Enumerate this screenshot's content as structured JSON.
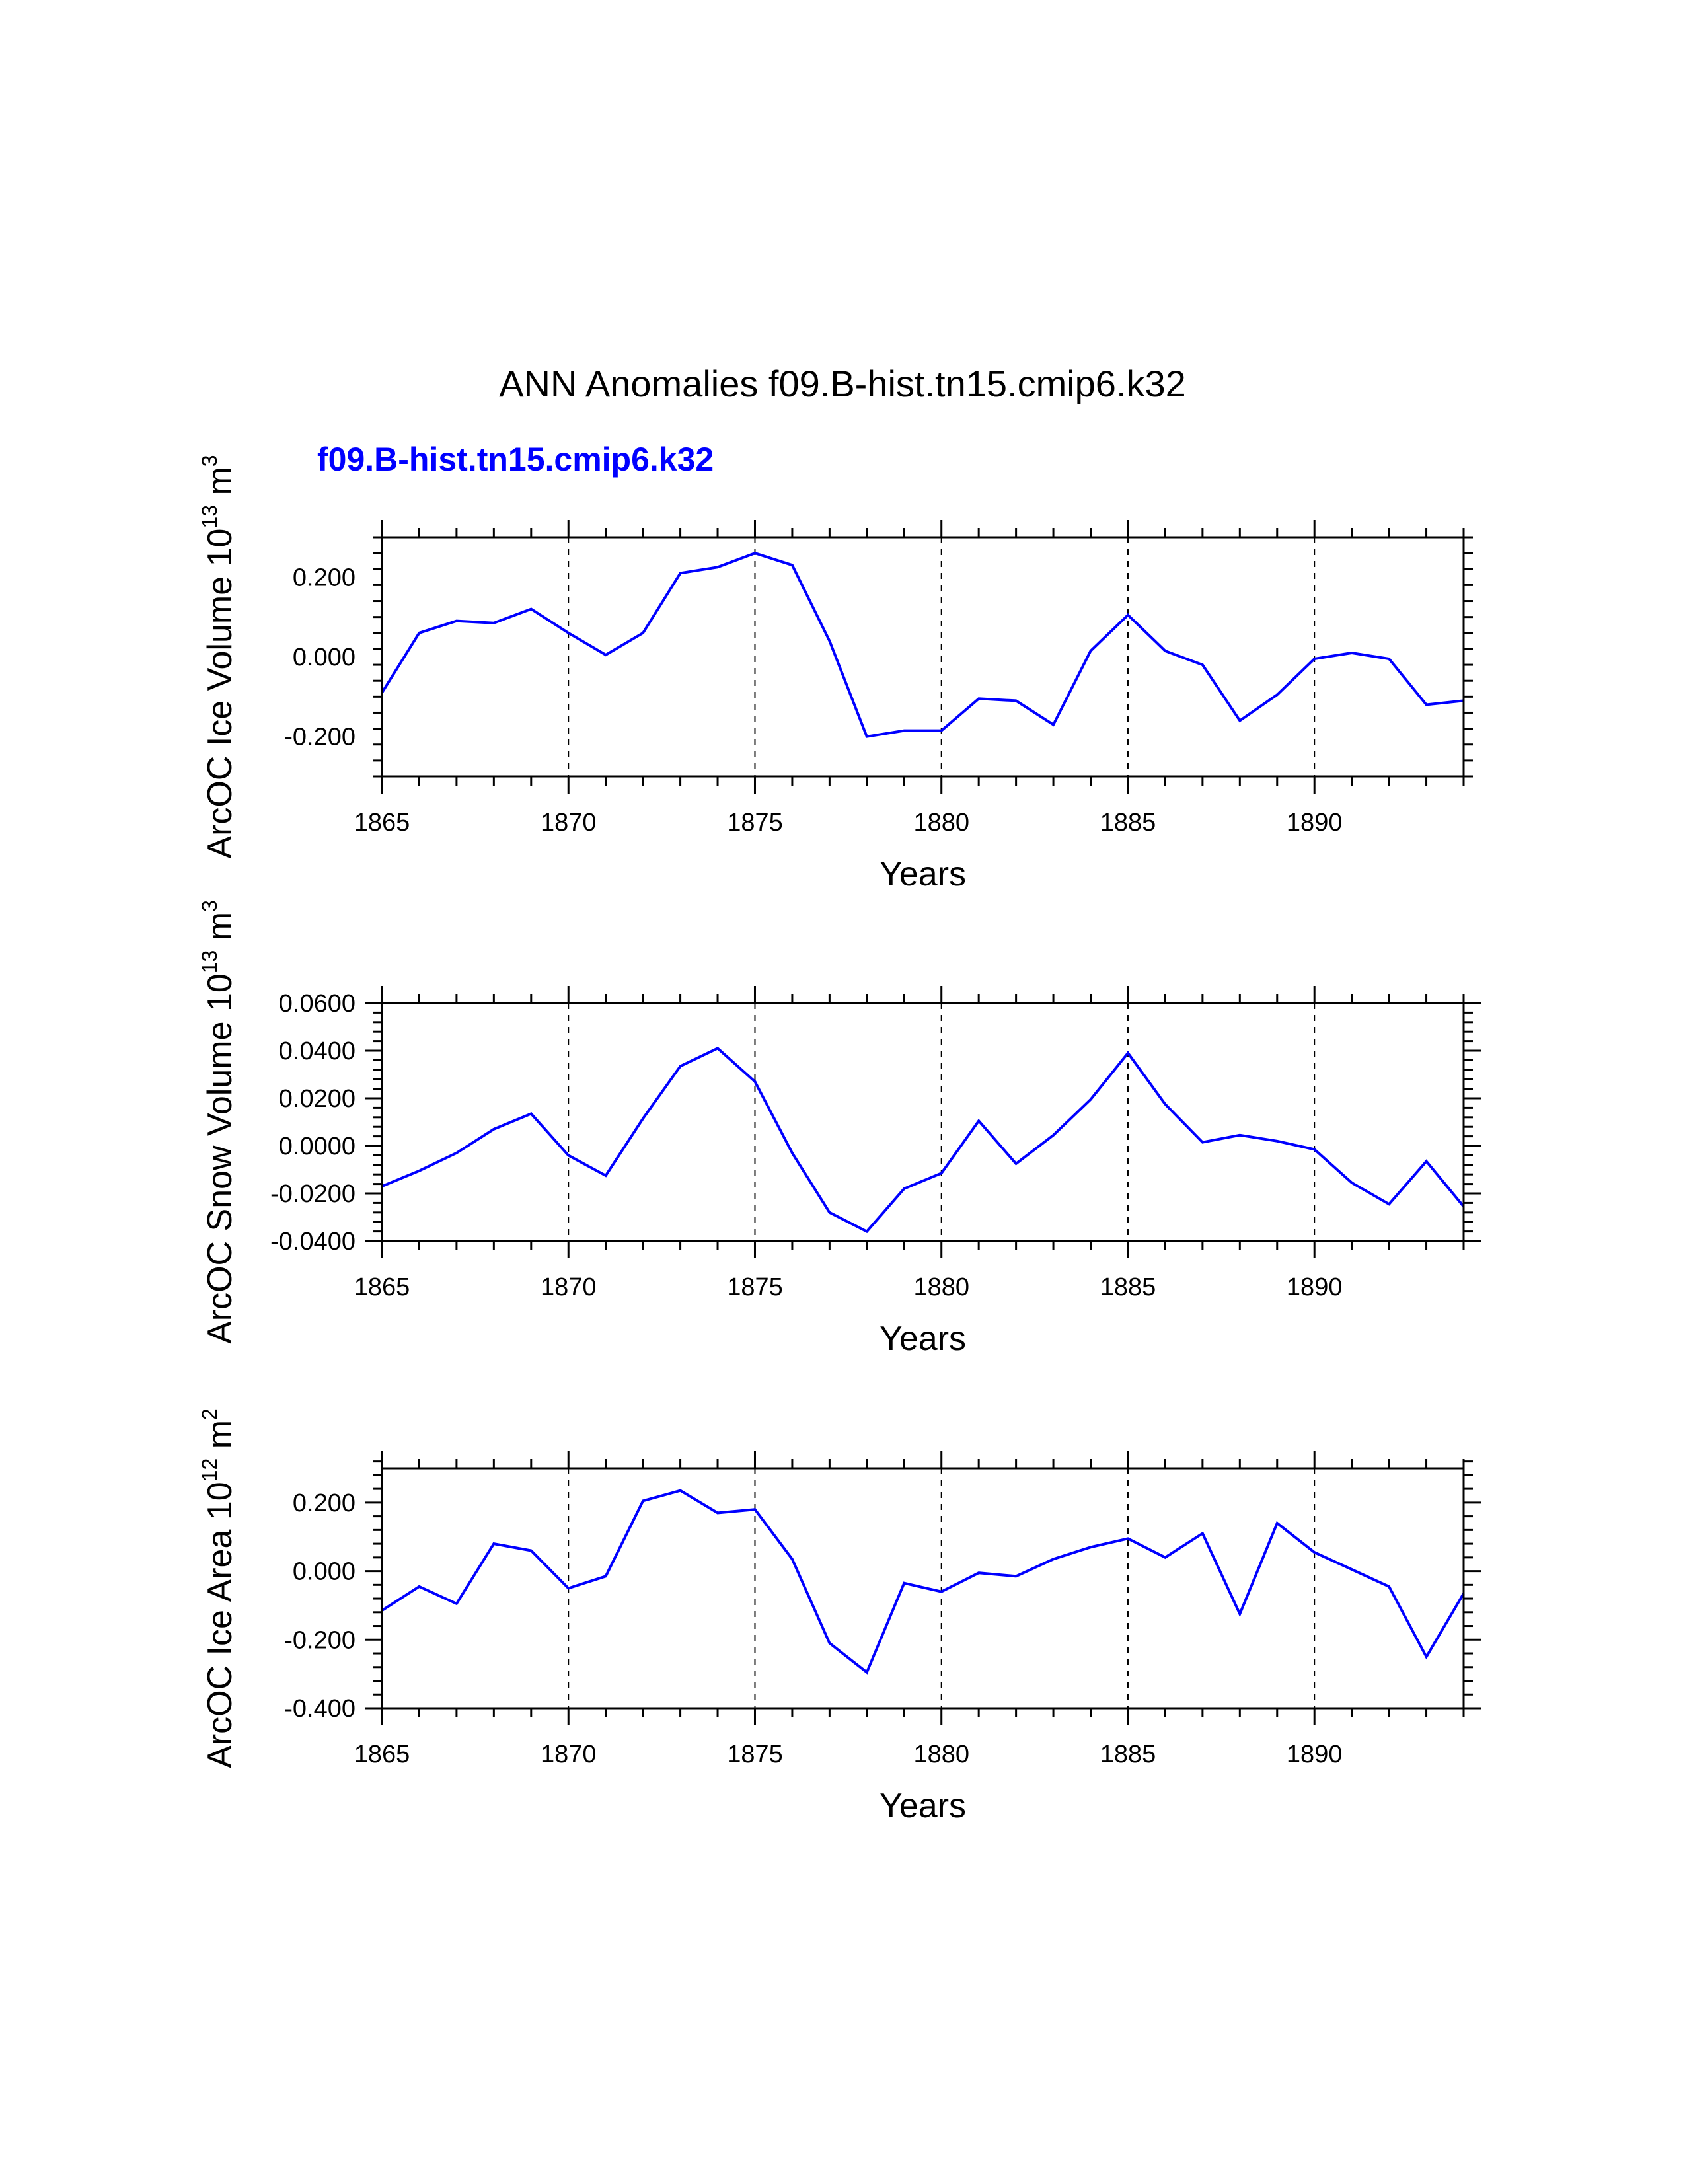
{
  "figure": {
    "title": "ANN Anomalies f09.B-hist.tn15.cmip6.k32",
    "case_label": "f09.B-hist.tn15.cmip6.k32",
    "case_color": "#0000ff",
    "line_color": "#0000ff"
  },
  "chart_data": [
    {
      "type": "line",
      "id": "ice-volume",
      "title": "",
      "ylabel": {
        "prefix": "ArcOC Ice Volume 10",
        "exp": "13",
        "unit": " m",
        "unit_exp": "3"
      },
      "xlabel": "Years",
      "xlim": [
        1865,
        1894
      ],
      "ylim": [
        -0.3,
        0.3
      ],
      "xticks": [
        1865,
        1870,
        1875,
        1880,
        1885,
        1890
      ],
      "xtick_labels": [
        "1865",
        "1870",
        "1875",
        "1880",
        "1885",
        "1890"
      ],
      "yticks": [
        -0.2,
        0.0,
        0.2
      ],
      "ytick_labels": [
        "-0.200",
        "0.000",
        "0.200"
      ],
      "x": [
        1865,
        1866,
        1867,
        1868,
        1869,
        1870,
        1871,
        1872,
        1873,
        1874,
        1875,
        1876,
        1877,
        1878,
        1879,
        1880,
        1881,
        1882,
        1883,
        1884,
        1885,
        1886,
        1887,
        1888,
        1889,
        1890,
        1891,
        1892,
        1893,
        1894
      ],
      "series": [
        {
          "name": "f09.B-hist.tn15.cmip6.k32",
          "values": [
            -0.09,
            0.06,
            0.09,
            0.085,
            0.12,
            0.06,
            0.005,
            0.06,
            0.21,
            0.225,
            0.26,
            0.23,
            0.04,
            -0.2,
            -0.185,
            -0.185,
            -0.105,
            -0.11,
            -0.17,
            0.015,
            0.105,
            0.015,
            -0.02,
            -0.16,
            -0.095,
            -0.005,
            0.01,
            -0.005,
            -0.12,
            -0.11
          ]
        }
      ]
    },
    {
      "type": "line",
      "id": "snow-volume",
      "title": "",
      "ylabel": {
        "prefix": "ArcOC Snow Volume 10",
        "exp": "13",
        "unit": " m",
        "unit_exp": "3"
      },
      "xlabel": "Years",
      "xlim": [
        1865,
        1894
      ],
      "ylim": [
        -0.04,
        0.06
      ],
      "xticks": [
        1865,
        1870,
        1875,
        1880,
        1885,
        1890
      ],
      "xtick_labels": [
        "1865",
        "1870",
        "1875",
        "1880",
        "1885",
        "1890"
      ],
      "yticks": [
        -0.04,
        -0.02,
        0.0,
        0.02,
        0.04,
        0.06
      ],
      "ytick_labels": [
        "-0.0400",
        "-0.0200",
        "0.0000",
        "0.0200",
        "0.0400",
        "0.0600"
      ],
      "x": [
        1865,
        1866,
        1867,
        1868,
        1869,
        1870,
        1871,
        1872,
        1873,
        1874,
        1875,
        1876,
        1877,
        1878,
        1879,
        1880,
        1881,
        1882,
        1883,
        1884,
        1885,
        1886,
        1887,
        1888,
        1889,
        1890,
        1891,
        1892,
        1893,
        1894
      ],
      "series": [
        {
          "name": "f09.B-hist.tn15.cmip6.k32",
          "values": [
            -0.017,
            -0.0105,
            -0.003,
            0.007,
            0.0135,
            -0.004,
            -0.0125,
            0.0115,
            0.0335,
            0.041,
            0.027,
            -0.003,
            -0.028,
            -0.036,
            -0.018,
            -0.0115,
            0.0105,
            -0.0075,
            0.0045,
            0.0195,
            0.039,
            0.0175,
            0.0015,
            0.0045,
            0.002,
            -0.0015,
            -0.0155,
            -0.0245,
            -0.0065,
            -0.0255
          ]
        }
      ]
    },
    {
      "type": "line",
      "id": "ice-area",
      "title": "",
      "ylabel": {
        "prefix": "ArcOC Ice Area 10",
        "exp": "12",
        "unit": " m",
        "unit_exp": "2"
      },
      "xlabel": "Years",
      "xlim": [
        1865,
        1894
      ],
      "ylim": [
        -0.4,
        0.3
      ],
      "xticks": [
        1865,
        1870,
        1875,
        1880,
        1885,
        1890
      ],
      "xtick_labels": [
        "1865",
        "1870",
        "1875",
        "1880",
        "1885",
        "1890"
      ],
      "yticks": [
        -0.4,
        -0.2,
        0.0,
        0.2
      ],
      "ytick_labels": [
        "-0.400",
        "-0.200",
        "0.000",
        "0.200"
      ],
      "x": [
        1865,
        1866,
        1867,
        1868,
        1869,
        1870,
        1871,
        1872,
        1873,
        1874,
        1875,
        1876,
        1877,
        1878,
        1879,
        1880,
        1881,
        1882,
        1883,
        1884,
        1885,
        1886,
        1887,
        1888,
        1889,
        1890,
        1891,
        1892,
        1893,
        1894
      ],
      "series": [
        {
          "name": "f09.B-hist.tn15.cmip6.k32",
          "values": [
            -0.115,
            -0.045,
            -0.095,
            0.08,
            0.06,
            -0.05,
            -0.015,
            0.205,
            0.235,
            0.17,
            0.18,
            0.035,
            -0.21,
            -0.295,
            -0.035,
            -0.06,
            -0.005,
            -0.015,
            0.035,
            0.07,
            0.095,
            0.04,
            0.11,
            -0.125,
            0.14,
            0.055,
            0.005,
            -0.045,
            -0.25,
            -0.065
          ]
        }
      ]
    }
  ]
}
